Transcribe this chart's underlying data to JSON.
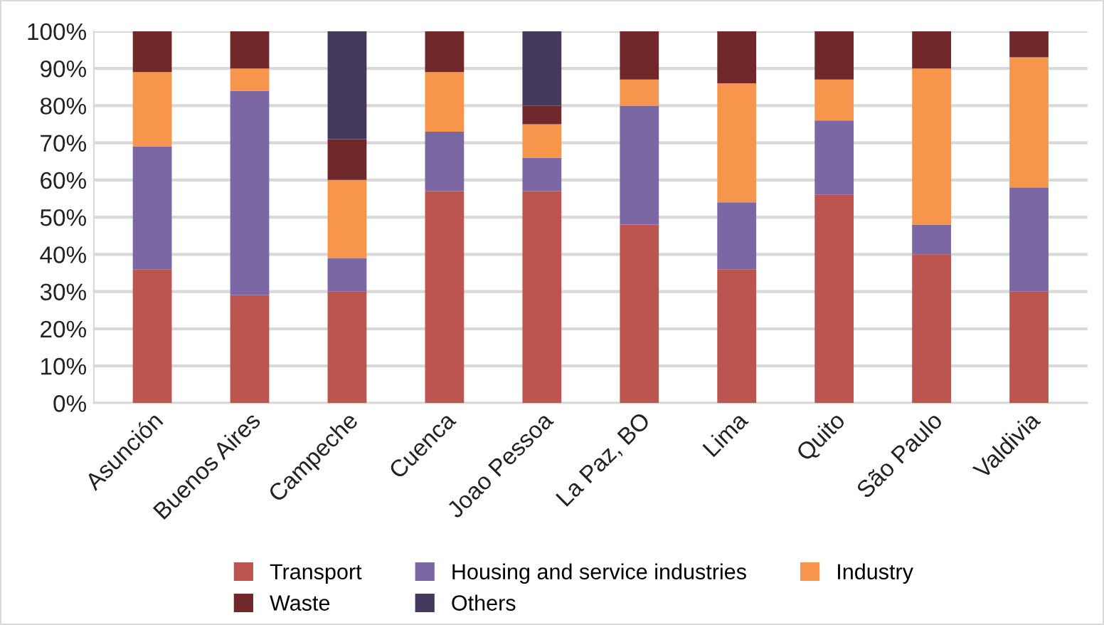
{
  "chart_data": {
    "type": "bar",
    "stacked": true,
    "categories": [
      "Asunción",
      "Buenos Aires",
      "Campeche",
      "Cuenca",
      "Joao Pessoa",
      "La Paz, BO",
      "Lima",
      "Quito",
      "São Paulo",
      "Valdivia"
    ],
    "series": [
      {
        "name": "Transport",
        "color": "#bc5450",
        "values": [
          36,
          29,
          30,
          57,
          57,
          48,
          36,
          56,
          40,
          30
        ]
      },
      {
        "name": "Housing and service industries",
        "color": "#7b67a3",
        "values": [
          33,
          55,
          9,
          16,
          9,
          32,
          18,
          20,
          8,
          28
        ]
      },
      {
        "name": "Industry",
        "color": "#f7954d",
        "values": [
          20,
          6,
          21,
          16,
          9,
          7,
          32,
          11,
          42,
          35
        ]
      },
      {
        "name": "Waste",
        "color": "#70282b",
        "values": [
          11,
          10,
          11,
          11,
          5,
          13,
          14,
          13,
          10,
          7
        ]
      },
      {
        "name": "Others",
        "color": "#45395e",
        "values": [
          0,
          0,
          29,
          0,
          20,
          0,
          0,
          0,
          0,
          0
        ]
      }
    ],
    "ylim": [
      0,
      100
    ],
    "yticks": [
      {
        "value": 0,
        "label": "0%"
      },
      {
        "value": 10,
        "label": "10%"
      },
      {
        "value": 20,
        "label": "20%"
      },
      {
        "value": 30,
        "label": "30%"
      },
      {
        "value": 40,
        "label": "40%"
      },
      {
        "value": 50,
        "label": "50%"
      },
      {
        "value": 60,
        "label": "60%"
      },
      {
        "value": 70,
        "label": "70%"
      },
      {
        "value": 80,
        "label": "80%"
      },
      {
        "value": 90,
        "label": "90%"
      },
      {
        "value": 100,
        "label": "100%"
      }
    ],
    "grid": "y",
    "legend": "bottom"
  }
}
